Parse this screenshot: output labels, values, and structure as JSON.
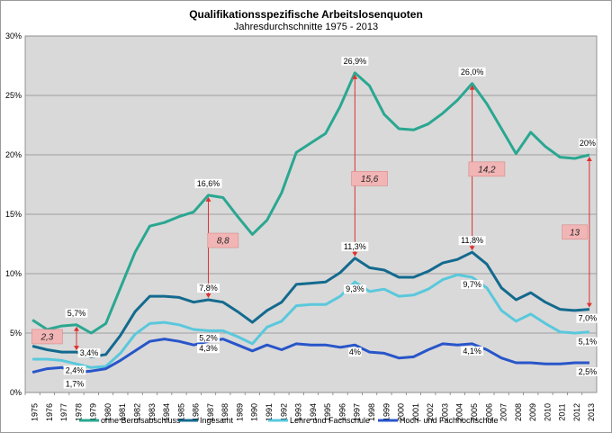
{
  "chart_data": {
    "type": "line",
    "title": "Qualifikationsspezifische Arbeitslosenquoten",
    "subtitle": "Jahresdurchschnitte  1975 - 2013",
    "x": [
      "1975",
      "1976",
      "1977",
      "1978",
      "1979",
      "1980",
      "1981",
      "1982",
      "1983",
      "1984",
      "1985",
      "1986",
      "1987",
      "1988",
      "1989",
      "1990",
      "1991",
      "1992",
      "1993",
      "1994",
      "1995",
      "1996",
      "1997",
      "1998",
      "1999",
      "2000",
      "2001",
      "2002",
      "2003",
      "2004",
      "2005",
      "2006",
      "2007",
      "2008",
      "2009",
      "2010",
      "2011",
      "2012",
      "2013"
    ],
    "y_ticks": [
      "0%",
      "5%",
      "10%",
      "15%",
      "20%",
      "25%",
      "30%"
    ],
    "ylim": [
      0,
      30
    ],
    "grid": true,
    "legend_position": "bottom",
    "series": [
      {
        "name": "ohne Berufsabschluss",
        "color": "#2aa791",
        "values": [
          6.1,
          5.3,
          5.6,
          5.7,
          5.0,
          5.8,
          8.8,
          11.8,
          14.0,
          14.3,
          14.8,
          15.2,
          16.6,
          16.4,
          14.8,
          13.3,
          14.5,
          16.8,
          20.2,
          21.0,
          21.8,
          24.1,
          26.9,
          25.8,
          23.4,
          22.2,
          22.1,
          22.6,
          23.5,
          24.6,
          26.0,
          24.3,
          22.2,
          20.1,
          21.9,
          20.7,
          19.8,
          19.7,
          20.0
        ]
      },
      {
        "name": "Ingesamt",
        "color": "#146a8e",
        "values": [
          3.9,
          3.6,
          3.4,
          3.4,
          3.0,
          3.2,
          4.8,
          6.8,
          8.1,
          8.1,
          8.0,
          7.6,
          7.8,
          7.6,
          6.8,
          5.9,
          6.9,
          7.6,
          9.1,
          9.2,
          9.3,
          10.1,
          11.3,
          10.5,
          10.3,
          9.7,
          9.7,
          10.2,
          10.9,
          11.2,
          11.8,
          10.8,
          8.8,
          7.8,
          8.4,
          7.6,
          7.0,
          6.9,
          7.0
        ]
      },
      {
        "name": "Lehre und Fachschule",
        "color": "#5ac8dc",
        "values": [
          2.8,
          2.8,
          2.7,
          2.4,
          2.1,
          2.2,
          3.3,
          4.9,
          5.8,
          5.9,
          5.7,
          5.3,
          5.2,
          5.2,
          4.7,
          4.1,
          5.5,
          6.0,
          7.3,
          7.4,
          7.4,
          8.1,
          9.3,
          8.5,
          8.7,
          8.1,
          8.2,
          8.7,
          9.5,
          9.9,
          9.7,
          8.8,
          6.9,
          6.0,
          6.6,
          5.8,
          5.1,
          5.0,
          5.1
        ]
      },
      {
        "name": "Hoch- und Fachhochschule",
        "color": "#2855c9",
        "values": [
          1.7,
          2.0,
          2.1,
          1.7,
          1.8,
          2.0,
          2.7,
          3.5,
          4.3,
          4.5,
          4.3,
          4.0,
          4.3,
          4.5,
          4.0,
          3.5,
          4.0,
          3.6,
          4.1,
          4.0,
          4.0,
          3.8,
          4.0,
          3.4,
          3.3,
          2.9,
          3.0,
          3.6,
          4.1,
          4.0,
          4.1,
          3.6,
          2.9,
          2.5,
          2.5,
          2.4,
          2.4,
          2.5,
          2.5
        ]
      }
    ],
    "data_labels": [
      {
        "series": 0,
        "x": "1978",
        "text": "5,7%"
      },
      {
        "series": 1,
        "x": "1978",
        "text": "3,4%"
      },
      {
        "series": 2,
        "x": "1978",
        "text": "2,4%"
      },
      {
        "series": 3,
        "x": "1978",
        "text": "1,7%"
      },
      {
        "series": 0,
        "x": "1987",
        "text": "16,6%"
      },
      {
        "series": 1,
        "x": "1987",
        "text": "7,8%"
      },
      {
        "series": 2,
        "x": "1987",
        "text": "5,2%"
      },
      {
        "series": 3,
        "x": "1987",
        "text": "4,3%"
      },
      {
        "series": 0,
        "x": "1997",
        "text": "26,9%"
      },
      {
        "series": 1,
        "x": "1997",
        "text": "11,3%"
      },
      {
        "series": 2,
        "x": "1997",
        "text": "9,3%"
      },
      {
        "series": 3,
        "x": "1997",
        "text": "4%"
      },
      {
        "series": 0,
        "x": "2005",
        "text": "26,0%"
      },
      {
        "series": 1,
        "x": "2005",
        "text": "11,8%"
      },
      {
        "series": 2,
        "x": "2005",
        "text": "9,7%"
      },
      {
        "series": 3,
        "x": "2005",
        "text": "4,1%"
      },
      {
        "series": 0,
        "x": "2013",
        "text": "20%"
      },
      {
        "series": 1,
        "x": "2013",
        "text": "7,0%"
      },
      {
        "series": 2,
        "x": "2013",
        "text": "5,1%"
      },
      {
        "series": 3,
        "x": "2013",
        "text": "2,5%"
      }
    ],
    "annotations": [
      {
        "x": "1978",
        "from": 5.7,
        "to": 3.4,
        "text": "2,3",
        "box_x": "1976",
        "box_y": 4.7
      },
      {
        "x": "1987",
        "from": 16.6,
        "to": 7.8,
        "text": "8,8",
        "box_x": "1988",
        "box_y": 12.8
      },
      {
        "x": "1997",
        "from": 26.9,
        "to": 11.3,
        "text": "15,6",
        "box_x": "1998",
        "box_y": 18.0
      },
      {
        "x": "2005",
        "from": 26.0,
        "to": 11.8,
        "text": "14,2",
        "box_x": "2006",
        "box_y": 18.8
      },
      {
        "x": "2013",
        "from": 20.0,
        "to": 7.0,
        "text": "13",
        "box_x": "2012",
        "box_y": 13.5
      }
    ]
  }
}
